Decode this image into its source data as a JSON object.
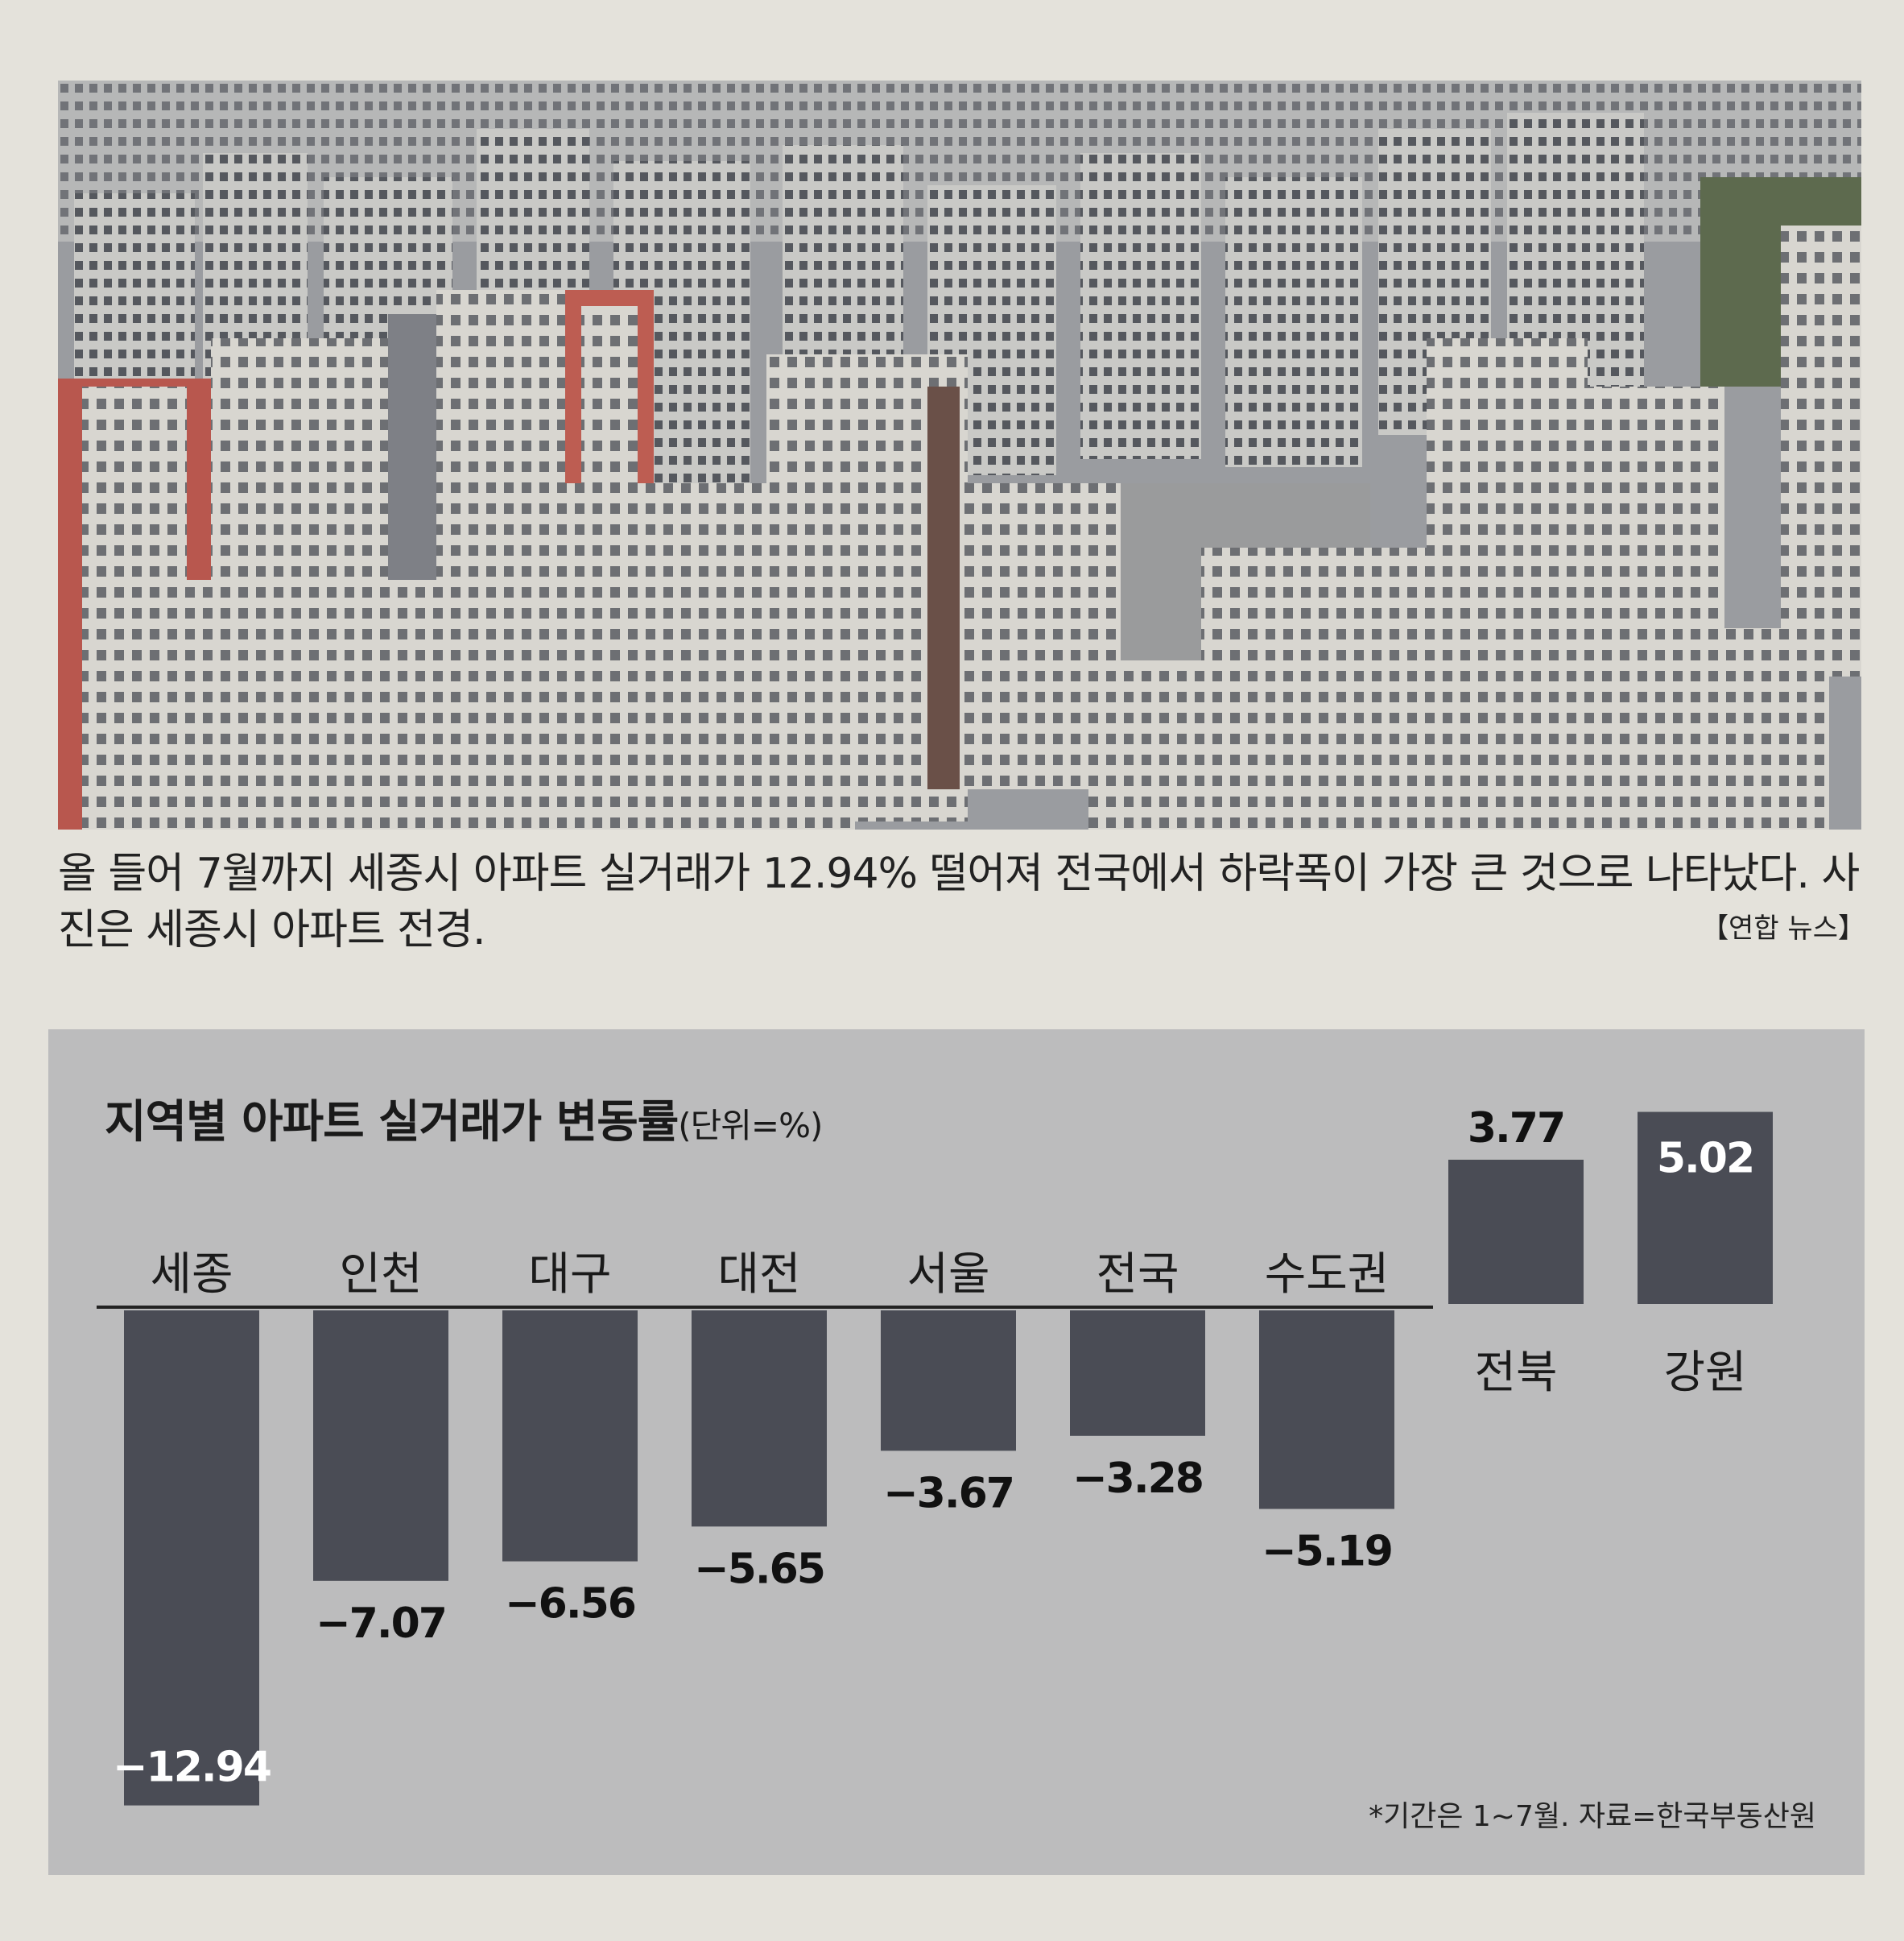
{
  "photo": {
    "caption": "올 들어 7월까지 세종시 아파트 실거래가 12.94% 떨어져 전국에서 하락폭이 가장 큰 것으로 나타났다. 사진은 세종시 아파트 전경.",
    "credit": "【연합 뉴스】"
  },
  "chart_data": {
    "type": "bar",
    "title": "지역별 아파트 실거래가 변동률",
    "unit": "(단위=%)",
    "categories": [
      "세종",
      "인천",
      "대구",
      "대전",
      "서울",
      "전국",
      "수도권",
      "전북",
      "강원"
    ],
    "value_labels": [
      "−12.94",
      "−7.07",
      "−6.56",
      "−5.65",
      "−3.67",
      "−3.28",
      "−5.19",
      "3.77",
      "5.02"
    ],
    "values": [
      -12.94,
      -7.07,
      -6.56,
      -5.65,
      -3.67,
      -3.28,
      -5.19,
      3.77,
      5.02
    ],
    "ylim": [
      -13,
      5.5
    ],
    "grid": false,
    "legend": "none",
    "note": "*기간은 1~7월. 자료=한국부동산원"
  },
  "colors": {
    "bar": "#4a4c55",
    "panel": "#bcbcbd",
    "axis": "#222222",
    "page": "#e4e2db"
  }
}
